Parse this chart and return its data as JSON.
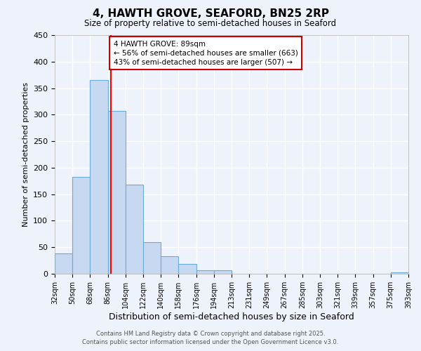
{
  "title": "4, HAWTH GROVE, SEAFORD, BN25 2RP",
  "subtitle": "Size of property relative to semi-detached houses in Seaford",
  "xlabel": "Distribution of semi-detached houses by size in Seaford",
  "ylabel": "Number of semi-detached properties",
  "bar_color": "#c6d9f1",
  "bar_edge_color": "#6aabda",
  "background_color": "#eef2fa",
  "grid_color": "#ffffff",
  "bar_heights": [
    38,
    183,
    365,
    307,
    168,
    60,
    33,
    19,
    7,
    6,
    0,
    0,
    0,
    0,
    0,
    0,
    0,
    0,
    0,
    2
  ],
  "tick_labels": [
    "32sqm",
    "50sqm",
    "68sqm",
    "86sqm",
    "104sqm",
    "122sqm",
    "140sqm",
    "158sqm",
    "176sqm",
    "194sqm",
    "213sqm",
    "231sqm",
    "249sqm",
    "267sqm",
    "285sqm",
    "303sqm",
    "321sqm",
    "339sqm",
    "357sqm",
    "375sqm",
    "393sqm"
  ],
  "ylim": [
    0,
    450
  ],
  "yticks": [
    0,
    50,
    100,
    150,
    200,
    250,
    300,
    350,
    400,
    450
  ],
  "red_line_x": 89,
  "annotation_title": "4 HAWTH GROVE: 89sqm",
  "annotation_line1": "← 56% of semi-detached houses are smaller (663)",
  "annotation_line2": "43% of semi-detached houses are larger (507) →",
  "annotation_box_color": "#ffffff",
  "annotation_box_edge": "#cc0000",
  "footer_line1": "Contains HM Land Registry data © Crown copyright and database right 2025.",
  "footer_line2": "Contains public sector information licensed under the Open Government Licence v3.0."
}
